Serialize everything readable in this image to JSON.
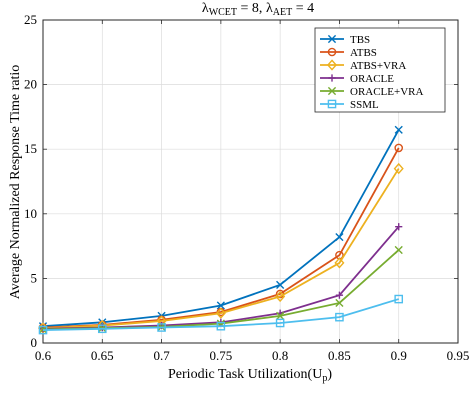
{
  "chart_data": {
    "type": "line",
    "title": {
      "lambda1_sub": "WCET",
      "eq1": " = 8, ",
      "lambda2_sub": "AET",
      "eq2": " = 4"
    },
    "xlabel": {
      "text": "Periodic Task Utilization(U",
      "sub": "p",
      "close": ")"
    },
    "ylabel": "Average Normalized Response Time ratio",
    "xlim": [
      0.6,
      0.95
    ],
    "ylim": [
      0,
      25
    ],
    "xticks": [
      0.6,
      0.65,
      0.7,
      0.75,
      0.8,
      0.85,
      0.9,
      0.95
    ],
    "xtick_labels": [
      "0.6",
      "0.65",
      "0.7",
      "0.75",
      "0.8",
      "0.85",
      "0.9",
      "0.95"
    ],
    "yticks": [
      0,
      5,
      10,
      15,
      20,
      25
    ],
    "ytick_labels": [
      "0",
      "5",
      "10",
      "15",
      "20",
      "25"
    ],
    "grid": true,
    "legend_position": "top-right",
    "x": [
      0.6,
      0.65,
      0.7,
      0.75,
      0.8,
      0.85,
      0.9
    ],
    "series": [
      {
        "name": "TBS",
        "color": "#0072BD",
        "marker": "x",
        "values": [
          1.3,
          1.6,
          2.1,
          2.9,
          4.5,
          8.2,
          16.5
        ]
      },
      {
        "name": "ATBS",
        "color": "#D95319",
        "marker": "circle",
        "values": [
          1.2,
          1.4,
          1.8,
          2.4,
          3.8,
          6.8,
          15.1
        ]
      },
      {
        "name": "ATBS+VRA",
        "color": "#EDB120",
        "marker": "diamond",
        "values": [
          1.15,
          1.35,
          1.7,
          2.3,
          3.6,
          6.2,
          13.5
        ]
      },
      {
        "name": "ORACLE",
        "color": "#7E2F8E",
        "marker": "plus",
        "values": [
          1.1,
          1.2,
          1.35,
          1.6,
          2.3,
          3.7,
          9.0
        ]
      },
      {
        "name": "ORACLE+VRA",
        "color": "#77AC30",
        "marker": "x",
        "values": [
          1.05,
          1.15,
          1.25,
          1.5,
          2.1,
          3.1,
          7.2
        ]
      },
      {
        "name": "SSML",
        "color": "#4DBEEE",
        "marker": "square",
        "values": [
          1.0,
          1.1,
          1.2,
          1.3,
          1.55,
          2.0,
          3.4
        ]
      }
    ]
  }
}
